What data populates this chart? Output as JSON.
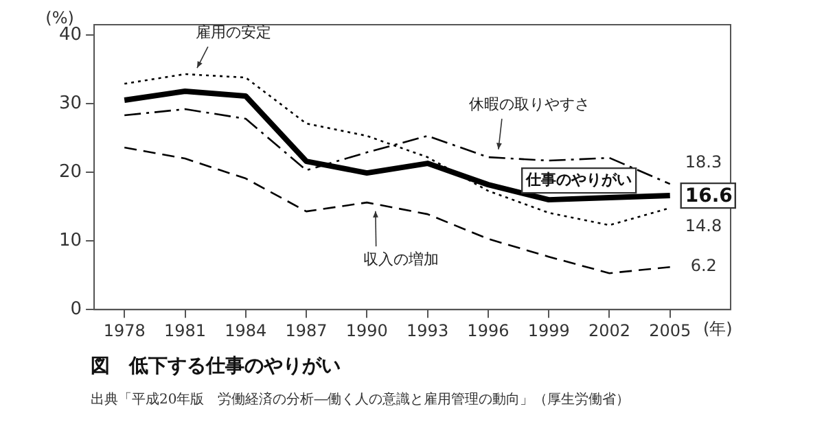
{
  "chart_data": {
    "type": "line",
    "title": "図　低下する仕事のやりがい",
    "ylabel": "(%)",
    "xlabel": "(年)",
    "annotations": [
      "出典「平成20年版　労働経済の分析―働く人の意識と雇用管理の動向」（厚生労働省）"
    ],
    "x": [
      1978,
      1981,
      1984,
      1987,
      1990,
      1993,
      1996,
      1999,
      2002,
      2005
    ],
    "xlim": [
      1976.5,
      2008
    ],
    "xticks": [
      1978,
      1981,
      1984,
      1987,
      1990,
      1993,
      1996,
      1999,
      2002,
      2005
    ],
    "ylim": [
      0,
      41.5
    ],
    "yticks": [
      0,
      10,
      20,
      30,
      40
    ],
    "grid": false,
    "legend": false,
    "marker": "none",
    "series": [
      {
        "name": "仕事のやりがい",
        "color": "#000000",
        "line_style": "solid",
        "values": [
          30.5,
          31.8,
          31.1,
          21.6,
          19.9,
          21.3,
          18.2,
          16.0,
          16.3,
          16.6
        ],
        "value_labels": [
          null,
          null,
          null,
          null,
          null,
          null,
          null,
          null,
          null,
          "16.6"
        ]
      },
      {
        "name": "雇用の安定",
        "color": "#000000",
        "line_style": "dotted",
        "values": [
          32.9,
          34.3,
          33.8,
          27.1,
          25.3,
          22.2,
          17.3,
          14.1,
          12.3,
          14.8
        ],
        "value_labels": [
          null,
          null,
          null,
          null,
          null,
          null,
          null,
          null,
          null,
          "14.8"
        ]
      },
      {
        "name": "休暇の取りやすさ",
        "color": "#000000",
        "line_style": "dashdot",
        "values": [
          28.3,
          29.2,
          27.8,
          20.3,
          22.9,
          25.3,
          22.2,
          21.7,
          22.1,
          18.3
        ],
        "value_labels": [
          null,
          null,
          null,
          null,
          null,
          null,
          null,
          null,
          null,
          "18.3"
        ]
      },
      {
        "name": "収入の増加",
        "color": "#000000",
        "line_style": "dashed",
        "values": [
          23.6,
          22.0,
          19.1,
          14.3,
          15.6,
          13.9,
          10.3,
          7.7,
          5.3,
          6.2
        ],
        "value_labels": [
          null,
          null,
          null,
          null,
          null,
          null,
          null,
          null,
          null,
          "6.2"
        ]
      }
    ]
  }
}
